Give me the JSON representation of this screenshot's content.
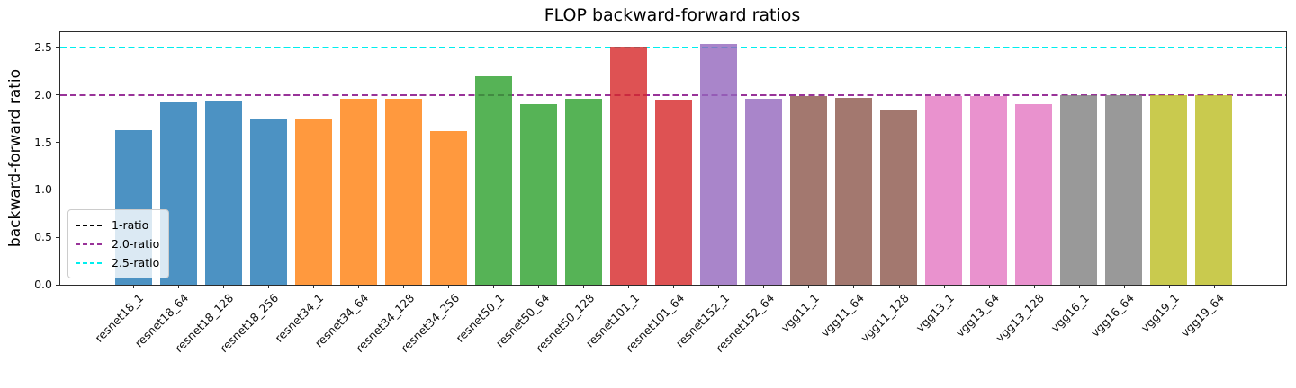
{
  "chart_data": {
    "type": "bar",
    "title": "FLOP backward-forward ratios",
    "ylabel": "backward-forward ratio",
    "xlabel": "",
    "categories": [
      "resnet18_1",
      "resnet18_64",
      "resnet18_128",
      "resnet18_256",
      "resnet34_1",
      "resnet34_64",
      "resnet34_128",
      "resnet34_256",
      "resnet50_1",
      "resnet50_64",
      "resnet50_128",
      "resnet101_1",
      "resnet101_64",
      "resnet152_1",
      "resnet152_64",
      "vgg11_1",
      "vgg11_64",
      "vgg11_128",
      "vgg13_1",
      "vgg13_64",
      "vgg13_128",
      "vgg16_1",
      "vgg16_64",
      "vgg19_1",
      "vgg19_64"
    ],
    "values": [
      1.63,
      1.92,
      1.93,
      1.74,
      1.75,
      1.96,
      1.96,
      1.62,
      2.2,
      1.9,
      1.96,
      2.51,
      1.95,
      2.54,
      1.96,
      1.99,
      1.97,
      1.85,
      1.99,
      1.99,
      1.9,
      2.0,
      2.0,
      2.0,
      2.0
    ],
    "bar_colors": [
      "#1f77b4",
      "#1f77b4",
      "#1f77b4",
      "#1f77b4",
      "#ff7f0e",
      "#ff7f0e",
      "#ff7f0e",
      "#ff7f0e",
      "#2ca02c",
      "#2ca02c",
      "#2ca02c",
      "#d62728",
      "#d62728",
      "#9467bd",
      "#9467bd",
      "#8c564b",
      "#8c564b",
      "#8c564b",
      "#e377c2",
      "#e377c2",
      "#e377c2",
      "#7f7f7f",
      "#7f7f7f",
      "#bcbd22",
      "#bcbd22"
    ],
    "bar_alpha": 0.8,
    "ylim": [
      0,
      2.66
    ],
    "yticks": [
      "0.0",
      "0.5",
      "1.0",
      "1.5",
      "2.0",
      "2.5"
    ],
    "grid": false,
    "legend_position": "lower-left",
    "ref_lines": [
      {
        "value": 1.0,
        "label": "1-ratio",
        "color": "#000000",
        "thickness": 1.6
      },
      {
        "value": 2.0,
        "label": "2.0-ratio",
        "color": "#993399",
        "thickness": 2.0
      },
      {
        "value": 2.5,
        "label": "2.5-ratio",
        "color": "#00eeee",
        "thickness": 2.4
      }
    ]
  }
}
